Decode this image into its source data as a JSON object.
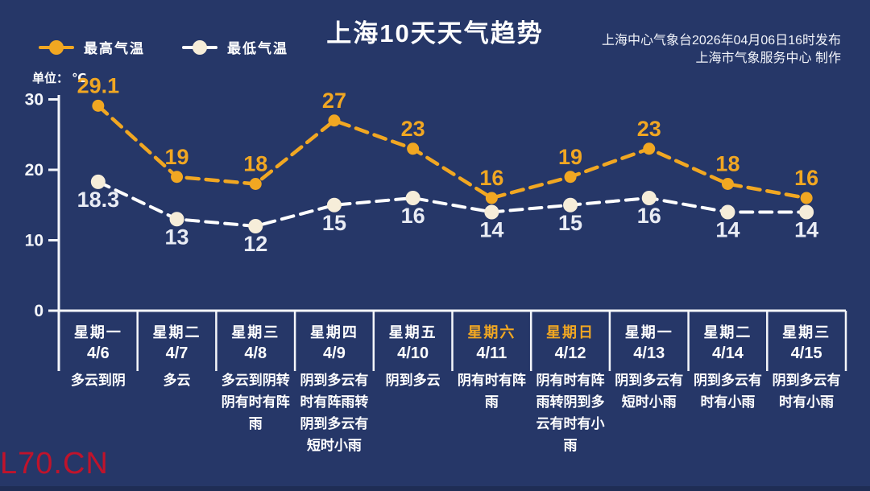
{
  "page": {
    "title": "上海10天天气趋势",
    "publisher_line1": "上海中心气象台2026年04月06日16时发布",
    "publisher_line2": "上海市气象服务中心  制作",
    "unit_label": "单位： ℃",
    "watermark": "L70.CN"
  },
  "legend": {
    "high_label": "最高气温",
    "low_label": "最低气温"
  },
  "colors": {
    "background": "#263768",
    "high": "#F1A722",
    "low_line": "#FFFFFF",
    "low_marker": "#F6EDD9",
    "low_value_text": "#E9ECF4",
    "axis": "#F4F6FA",
    "weekend_day": "#F1A722",
    "watermark": "#CE1126"
  },
  "chart_data": {
    "type": "line",
    "title": "上海10天天气趋势",
    "ylabel": "℃",
    "y_axis": {
      "ticks": [
        30,
        20,
        10,
        0
      ],
      "min": 0,
      "max": 30
    },
    "grid": false,
    "legend_position": "top-left",
    "categories": [
      {
        "day": "星期一",
        "date": "4/6",
        "weather": "多云到阴",
        "weekend": false
      },
      {
        "day": "星期二",
        "date": "4/7",
        "weather": "多云",
        "weekend": false
      },
      {
        "day": "星期三",
        "date": "4/8",
        "weather": "多云到阴转阴有时有阵雨",
        "weekend": false
      },
      {
        "day": "星期四",
        "date": "4/9",
        "weather": "阴到多云有时有阵雨转阴到多云有短时小雨",
        "weekend": false
      },
      {
        "day": "星期五",
        "date": "4/10",
        "weather": "阴到多云",
        "weekend": false
      },
      {
        "day": "星期六",
        "date": "4/11",
        "weather": "阴有时有阵雨",
        "weekend": true
      },
      {
        "day": "星期日",
        "date": "4/12",
        "weather": "阴有时有阵雨转阴到多云有时有小雨",
        "weekend": true
      },
      {
        "day": "星期一",
        "date": "4/13",
        "weather": "阴到多云有短时小雨",
        "weekend": false
      },
      {
        "day": "星期二",
        "date": "4/14",
        "weather": "阴到多云有时有小雨",
        "weekend": false
      },
      {
        "day": "星期三",
        "date": "4/15",
        "weather": "阴到多云有时有小雨",
        "weekend": false
      }
    ],
    "series": [
      {
        "name": "最高气温",
        "values": [
          29.1,
          19,
          18,
          27,
          23,
          16,
          19,
          23,
          18,
          16
        ],
        "color": "#F1A722"
      },
      {
        "name": "最低气温",
        "values": [
          18.3,
          13,
          12,
          15,
          16,
          14,
          15,
          16,
          14,
          14
        ],
        "color": "#FFFFFF"
      }
    ]
  }
}
